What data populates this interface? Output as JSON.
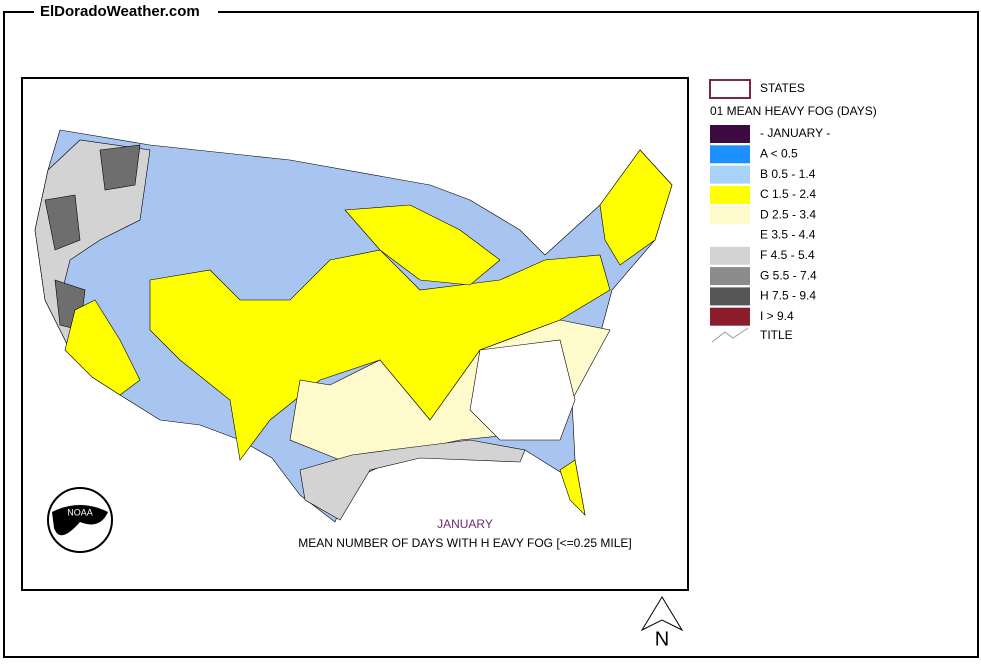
{
  "header": {
    "site": "ElDoradoWeather.com"
  },
  "map": {
    "month": "JANUARY",
    "caption": "MEAN NUMBER OF DAYS WITH H EAVY FOG [<=0.25 MILE]",
    "logo": "NOAA",
    "north": "N"
  },
  "legend": {
    "states": "STATES",
    "heading": "01 MEAN HEAVY FOG (DAYS)",
    "title": "TITLE",
    "items": [
      {
        "label": "- JANUARY -",
        "color": "#3c0a40"
      },
      {
        "label": "A < 0.5",
        "color": "#1e8fff"
      },
      {
        "label": "B 0.5 - 1.4",
        "color": "#a8d2f8"
      },
      {
        "label": "C 1.5 - 2.4",
        "color": "#ffff00"
      },
      {
        "label": "D 2.5 - 3.4",
        "color": "#fffacc"
      },
      {
        "label": "E 3.5 - 4.4",
        "color": "#ffffff"
      },
      {
        "label": "F 4.5 - 5.4",
        "color": "#d3d3d3"
      },
      {
        "label": "G 5.5 - 7.4",
        "color": "#8c8c8c"
      },
      {
        "label": "H 7.5 - 9.4",
        "color": "#555555"
      },
      {
        "label": "I > 9.4",
        "color": "#8b1c2c"
      }
    ]
  }
}
